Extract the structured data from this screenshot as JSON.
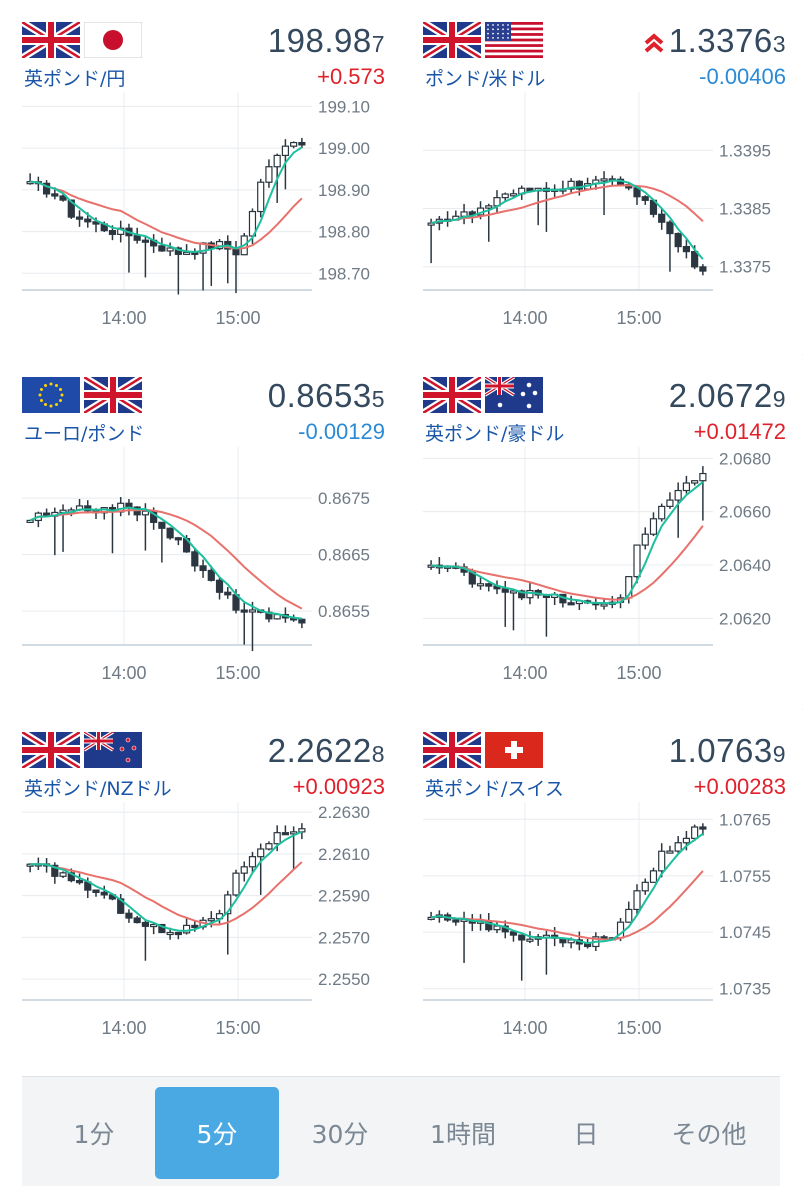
{
  "cards": [
    {
      "pair": "英ポンド/円",
      "rate_main": "198.98",
      "rate_small": "7",
      "change": "+0.573",
      "direction": "up",
      "flags": [
        "gb",
        "jp"
      ],
      "y_ticks": [
        "199.10",
        "199.00",
        "198.90",
        "198.80",
        "198.70"
      ],
      "ylim": [
        198.66,
        199.12
      ],
      "x_ticks": [
        "14:00",
        "15:00"
      ]
    },
    {
      "pair": "ポンド/米ドル",
      "rate_main": "1.3376",
      "rate_small": "3",
      "change": "-0.00406",
      "direction": "down",
      "flags": [
        "gb",
        "us"
      ],
      "alert_icon": "double-chevron-up-icon",
      "y_ticks": [
        "1.3395",
        "1.3385",
        "1.3375"
      ],
      "ylim": [
        1.3371,
        1.3404
      ],
      "x_ticks": [
        "14:00",
        "15:00"
      ]
    },
    {
      "pair": "ユーロ/ポンド",
      "rate_main": "0.8653",
      "rate_small": "5",
      "change": "-0.00129",
      "direction": "down",
      "flags": [
        "eu",
        "gb"
      ],
      "y_ticks": [
        "0.8675",
        "0.8665",
        "0.8655"
      ],
      "ylim": [
        0.8649,
        0.8683
      ],
      "x_ticks": [
        "14:00",
        "15:00"
      ]
    },
    {
      "pair": "英ポンド/豪ドル",
      "rate_main": "2.0672",
      "rate_small": "9",
      "change": "+0.01472",
      "direction": "up",
      "flags": [
        "gb",
        "au"
      ],
      "y_ticks": [
        "2.0680",
        "2.0660",
        "2.0640",
        "2.0620"
      ],
      "ylim": [
        2.061,
        2.0682
      ],
      "x_ticks": [
        "14:00",
        "15:00"
      ]
    },
    {
      "pair": "英ポンド/NZドル",
      "rate_main": "2.2622",
      "rate_small": "8",
      "change": "+0.00923",
      "direction": "up",
      "flags": [
        "gb",
        "nz"
      ],
      "y_ticks": [
        "2.2630",
        "2.2610",
        "2.2590",
        "2.2570",
        "2.2550"
      ],
      "ylim": [
        2.254,
        2.2632
      ],
      "x_ticks": [
        "14:00",
        "15:00"
      ]
    },
    {
      "pair": "英ポンド/スイス",
      "rate_main": "1.0763",
      "rate_small": "9",
      "change": "+0.00283",
      "direction": "up",
      "flags": [
        "gb",
        "ch"
      ],
      "y_ticks": [
        "1.0765",
        "1.0755",
        "1.0745",
        "1.0735"
      ],
      "ylim": [
        1.0733,
        1.0767
      ],
      "x_ticks": [
        "14:00",
        "15:00"
      ]
    }
  ],
  "tabs": [
    {
      "label": "1分",
      "active": false
    },
    {
      "label": "5分",
      "active": true
    },
    {
      "label": "30分",
      "active": false
    },
    {
      "label": "1時間",
      "active": false
    },
    {
      "label": "日",
      "active": false
    },
    {
      "label": "その他",
      "active": false
    }
  ],
  "colors": {
    "up": "#e0212b",
    "down": "#2a8ad6",
    "candle": "#2b3640",
    "ma_short": "#1dbf9f",
    "ma_long": "#e8716c",
    "tab_active": "#4aa8e2"
  }
}
